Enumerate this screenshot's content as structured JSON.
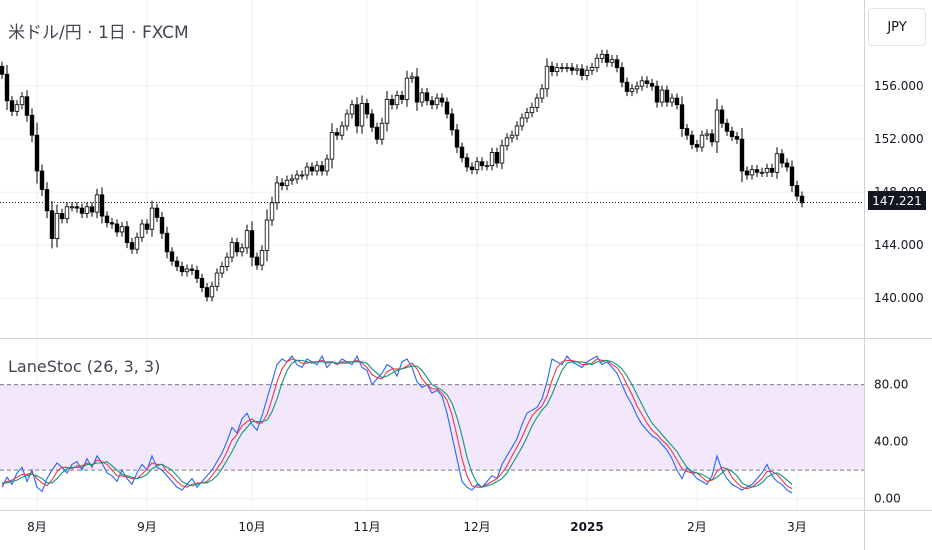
{
  "header": {
    "symbol_title": "米ドル/円 · 1日 · FXCM",
    "currency_button": "JPY"
  },
  "last_price_label": "147.221",
  "colors": {
    "candle_up": "#ffffff",
    "candle_down": "#000000",
    "candle_outline": "#000000",
    "k_line": "#2962ff",
    "d_line": "#f23645",
    "slow_line": "#089981",
    "band_fill": "#f3e8fb",
    "grid": "#eef0f3"
  },
  "chart_data": [
    {
      "type": "candlestick",
      "title": "米ドル/円 · 1日 · FXCM",
      "ylim": [
        137.0,
        162.5
      ],
      "price_ticks": [
        {
          "value": 140,
          "label": "140.000"
        },
        {
          "value": 144,
          "label": "144.000"
        },
        {
          "value": 148,
          "label": "148.000"
        },
        {
          "value": 152,
          "label": "152.000"
        },
        {
          "value": 156,
          "label": "156.000"
        }
      ],
      "time_ticks": [
        {
          "index": 7,
          "label": "8月",
          "bold": false
        },
        {
          "index": 29,
          "label": "9月",
          "bold": false
        },
        {
          "index": 50,
          "label": "10月",
          "bold": false
        },
        {
          "index": 73,
          "label": "11月",
          "bold": false
        },
        {
          "index": 95,
          "label": "12月",
          "bold": false
        },
        {
          "index": 117,
          "label": "2025",
          "bold": true
        },
        {
          "index": 139,
          "label": "2月",
          "bold": false
        },
        {
          "index": 159,
          "label": "3月",
          "bold": false
        }
      ],
      "last_price": 147.221,
      "close": [
        156.9,
        154.9,
        154.1,
        154.6,
        155.2,
        153.8,
        152.3,
        149.6,
        148.2,
        146.6,
        144.5,
        146.4,
        146.0,
        146.9,
        146.9,
        146.8,
        146.4,
        146.9,
        146.5,
        147.8,
        146.2,
        145.7,
        145.6,
        145.0,
        145.4,
        144.2,
        143.7,
        144.6,
        145.6,
        145.2,
        146.8,
        146.1,
        144.9,
        143.5,
        142.8,
        142.4,
        142.0,
        142.2,
        142.1,
        141.5,
        140.8,
        140.1,
        140.9,
        141.9,
        142.4,
        143.1,
        144.2,
        143.5,
        143.8,
        145.1,
        143.1,
        142.5,
        143.6,
        145.9,
        147.2,
        148.7,
        148.5,
        148.9,
        149.0,
        149.3,
        149.3,
        149.9,
        149.6,
        150.0,
        149.6,
        150.5,
        152.5,
        152.3,
        153.0,
        153.9,
        154.6,
        153.0,
        154.7,
        153.9,
        152.9,
        152.0,
        153.2,
        155.0,
        154.6,
        155.3,
        155.0,
        156.6,
        156.7,
        154.8,
        155.5,
        154.9,
        154.6,
        155.1,
        154.8,
        153.9,
        152.7,
        151.4,
        150.6,
        149.9,
        149.7,
        150.3,
        150.0,
        150.0,
        151.0,
        150.2,
        151.5,
        152.1,
        152.3,
        153.0,
        153.6,
        154.0,
        154.4,
        155.1,
        155.8,
        157.5,
        157.1,
        157.4,
        157.4,
        157.4,
        157.2,
        157.3,
        156.8,
        157.2,
        157.4,
        158.1,
        158.4,
        157.8,
        158.0,
        157.4,
        156.3,
        155.6,
        155.8,
        156.0,
        156.4,
        156.2,
        156.0,
        154.8,
        155.7,
        154.8,
        155.1,
        154.6,
        152.8,
        152.3,
        151.6,
        151.4,
        152.3,
        152.4,
        151.8,
        154.2,
        153.2,
        152.6,
        152.2,
        152.0,
        149.6,
        149.3,
        149.7,
        149.5,
        149.5,
        149.8,
        149.5,
        150.9,
        150.2,
        149.9,
        148.5,
        147.7,
        147.2
      ],
      "note_colors": "up candles hollow, down candles filled"
    },
    {
      "type": "line",
      "title": "LaneStoc (26, 3, 3)",
      "ylim": [
        -8,
        112
      ],
      "levels": [
        {
          "value": 80,
          "label": "80.00"
        },
        {
          "value": 20,
          "label": "20.00"
        }
      ],
      "value_ticks": [
        {
          "value": 0,
          "label": "0.00"
        },
        {
          "value": 40,
          "label": "40.00"
        },
        {
          "value": 80,
          "label": "80.00"
        }
      ],
      "series": [
        {
          "values": [
            8,
            15,
            10,
            18,
            22,
            12,
            20,
            8,
            5,
            14,
            20,
            25,
            22,
            18,
            24,
            26,
            20,
            28,
            22,
            30,
            25,
            18,
            16,
            12,
            20,
            14,
            10,
            18,
            24,
            20,
            30,
            22,
            20,
            16,
            12,
            8,
            6,
            10,
            14,
            8,
            12,
            16,
            20,
            26,
            32,
            40,
            50,
            46,
            56,
            60,
            52,
            48,
            58,
            70,
            82,
            94,
            98,
            96,
            100,
            94,
            92,
            98,
            96,
            94,
            100,
            92,
            96,
            94,
            98,
            96,
            94,
            100,
            92,
            90,
            80,
            84,
            88,
            94,
            92,
            86,
            96,
            98,
            92,
            82,
            78,
            80,
            74,
            76,
            72,
            60,
            44,
            28,
            12,
            8,
            6,
            10,
            8,
            12,
            16,
            14,
            24,
            30,
            36,
            42,
            52,
            60,
            62,
            64,
            70,
            82,
            98,
            96,
            94,
            100,
            96,
            94,
            92,
            96,
            98,
            100,
            94,
            96,
            92,
            88,
            80,
            72,
            66,
            58,
            52,
            48,
            44,
            42,
            38,
            34,
            28,
            20,
            14,
            22,
            18,
            14,
            12,
            10,
            16,
            30,
            20,
            14,
            10,
            8,
            6,
            8,
            10,
            14,
            18,
            24,
            16,
            12,
            10,
            6,
            4
          ]
        },
        {
          "values": [
            10,
            12,
            13,
            15,
            17,
            17,
            18,
            14,
            11,
            9,
            13,
            19,
            22,
            22,
            21,
            23,
            23,
            25,
            23,
            27,
            26,
            24,
            20,
            16,
            16,
            15,
            14,
            14,
            17,
            21,
            25,
            24,
            24,
            19,
            16,
            12,
            9,
            8,
            10,
            11,
            11,
            12,
            16,
            21,
            26,
            33,
            41,
            45,
            51,
            54,
            56,
            53,
            53,
            59,
            70,
            82,
            91,
            96,
            98,
            97,
            95,
            95,
            96,
            96,
            97,
            95,
            96,
            94,
            96,
            96,
            96,
            97,
            95,
            92,
            87,
            85,
            84,
            89,
            91,
            91,
            91,
            93,
            95,
            91,
            84,
            80,
            77,
            77,
            74,
            69,
            59,
            44,
            28,
            16,
            9,
            8,
            8,
            10,
            12,
            14,
            18,
            23,
            30,
            36,
            43,
            51,
            58,
            62,
            65,
            72,
            83,
            92,
            96,
            97,
            97,
            96,
            94,
            94,
            95,
            98,
            97,
            97,
            94,
            92,
            87,
            80,
            73,
            65,
            59,
            53,
            48,
            45,
            41,
            38,
            33,
            27,
            21,
            19,
            18,
            18,
            15,
            12,
            13,
            19,
            22,
            21,
            15,
            11,
            8,
            7,
            8,
            11,
            14,
            19,
            19,
            17,
            13,
            9,
            7
          ]
        },
        {
          "values": [
            11,
            11,
            12,
            13,
            15,
            16,
            17,
            16,
            14,
            11,
            11,
            14,
            18,
            21,
            22,
            22,
            22,
            24,
            24,
            25,
            25,
            26,
            23,
            20,
            17,
            16,
            15,
            14,
            15,
            17,
            21,
            23,
            24,
            22,
            20,
            16,
            12,
            10,
            9,
            10,
            11,
            11,
            13,
            16,
            21,
            27,
            33,
            40,
            46,
            50,
            54,
            54,
            54,
            55,
            61,
            70,
            81,
            90,
            95,
            97,
            97,
            96,
            95,
            96,
            96,
            96,
            96,
            95,
            95,
            95,
            96,
            96,
            96,
            95,
            91,
            88,
            85,
            86,
            88,
            90,
            91,
            92,
            93,
            93,
            90,
            85,
            80,
            78,
            76,
            73,
            67,
            57,
            44,
            29,
            18,
            11,
            8,
            9,
            10,
            12,
            14,
            18,
            24,
            30,
            36,
            43,
            51,
            57,
            62,
            66,
            73,
            82,
            90,
            95,
            96,
            96,
            96,
            95,
            94,
            96,
            96,
            97,
            96,
            94,
            91,
            86,
            80,
            73,
            66,
            59,
            53,
            49,
            45,
            41,
            37,
            33,
            27,
            22,
            19,
            18,
            17,
            15,
            13,
            15,
            18,
            21,
            19,
            16,
            11,
            9,
            8,
            9,
            11,
            15,
            17,
            18,
            16,
            13,
            10
          ]
        }
      ]
    }
  ]
}
